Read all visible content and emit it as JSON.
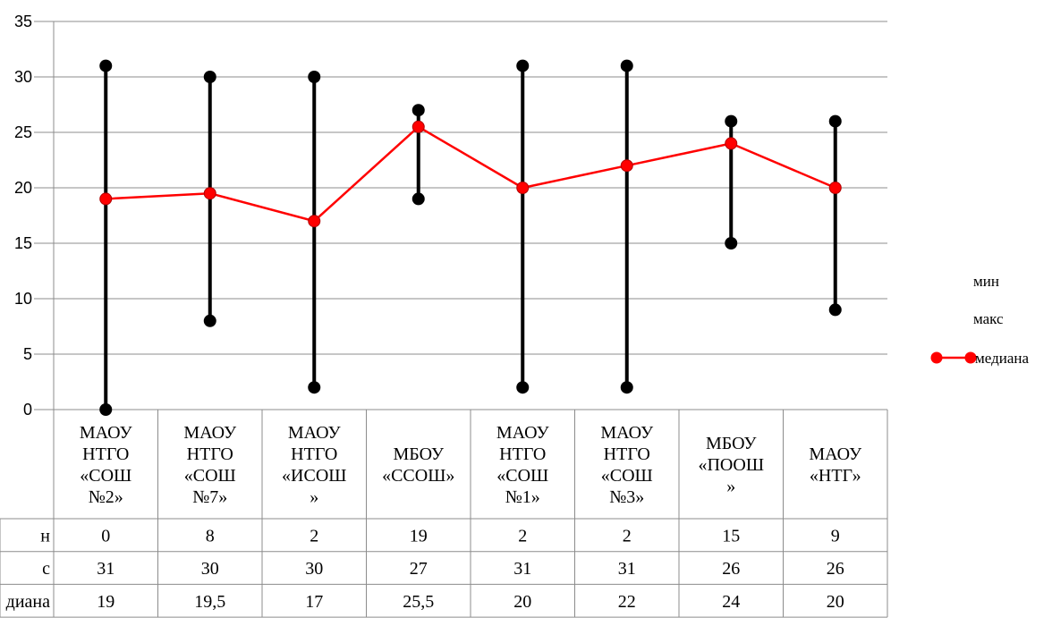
{
  "chart_data": {
    "type": "line",
    "categories": [
      [
        "МАОУ",
        "НТГО",
        "«СОШ",
        "№2»"
      ],
      [
        "МАОУ",
        "НТГО",
        "«СОШ",
        "№7»"
      ],
      [
        "МАОУ",
        "НТГО",
        "«ИСОШ",
        "»"
      ],
      [
        "МБОУ",
        "«ССОШ»"
      ],
      [
        "МАОУ",
        "НТГО",
        "«СОШ",
        "№1»"
      ],
      [
        "МАОУ",
        "НТГО",
        "«СОШ",
        "№3»"
      ],
      [
        "МБОУ",
        "«ПООШ",
        "»"
      ],
      [
        "МАОУ",
        "«НТГ»"
      ]
    ],
    "series": [
      {
        "name": "мин",
        "values": [
          0,
          8,
          2,
          19,
          2,
          2,
          15,
          9
        ],
        "color": "#000000"
      },
      {
        "name": "макс",
        "values": [
          31,
          30,
          30,
          27,
          31,
          31,
          26,
          26
        ],
        "color": "#000000"
      },
      {
        "name": "медиана",
        "values": [
          19,
          19.5,
          17,
          25.5,
          20,
          22,
          24,
          20
        ],
        "color": "#ff0000"
      }
    ],
    "table_rows": [
      {
        "label": "н",
        "cells": [
          "0",
          "8",
          "2",
          "19",
          "2",
          "2",
          "15",
          "9"
        ]
      },
      {
        "label": "с",
        "cells": [
          "31",
          "30",
          "30",
          "27",
          "31",
          "31",
          "26",
          "26"
        ]
      },
      {
        "label": "диана",
        "cells": [
          "19",
          "19,5",
          "17",
          "25,5",
          "20",
          "22",
          "24",
          "20"
        ]
      }
    ],
    "yticks": [
      0,
      5,
      10,
      15,
      20,
      25,
      30,
      35
    ],
    "ylim": [
      0,
      35
    ],
    "grid": true,
    "legend_position": "right",
    "high_low_lines": true
  }
}
